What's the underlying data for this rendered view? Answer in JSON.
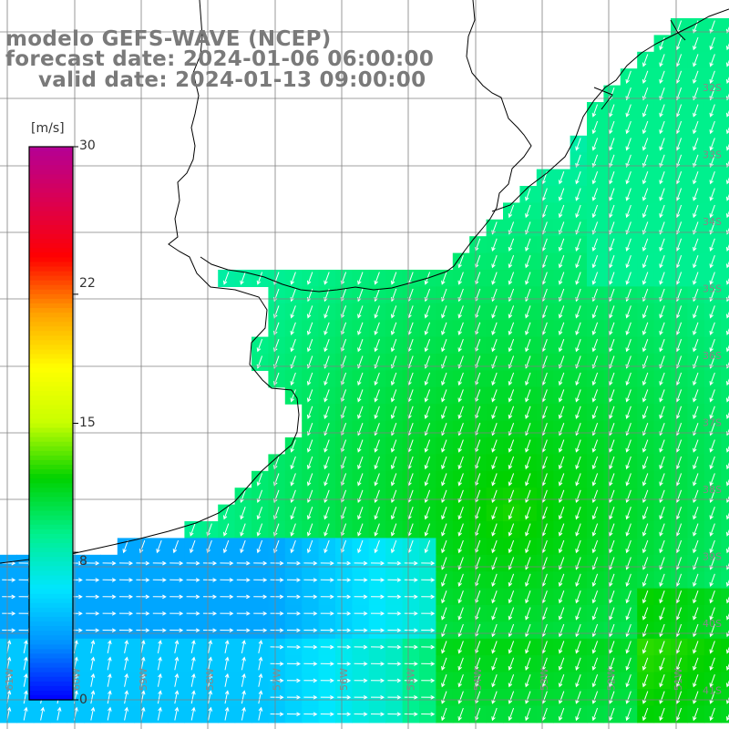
{
  "title": {
    "model": "modelo GEFS-WAVE (NCEP)",
    "forecast_date": "forecast date: 2024-01-06 06:00:00",
    "valid_date": "valid date: 2024-01-13 09:00:00"
  },
  "colorbar": {
    "unit": "[m/s]",
    "ticks": [
      {
        "value": 30,
        "label": "30"
      },
      {
        "value": 22,
        "label": "22"
      },
      {
        "value": 15,
        "label": "15"
      },
      {
        "value": 8,
        "label": "8"
      },
      {
        "value": 0,
        "label": "0"
      }
    ],
    "range": [
      0,
      30
    ],
    "colors": [
      "#0000ff",
      "#0090ff",
      "#00e6ff",
      "#00f08c",
      "#00d200",
      "#c8ff00",
      "#ffff00",
      "#ffa000",
      "#ff0000",
      "#dc0050",
      "#b40096"
    ]
  },
  "map": {
    "latitude_labels": [
      "32S",
      "33S",
      "34S",
      "35S",
      "36S",
      "37S",
      "38S",
      "39S",
      "40S",
      "41S"
    ],
    "longitude_labels": [
      "61W",
      "60W",
      "59W",
      "58W",
      "57W",
      "56W",
      "55W",
      "54W",
      "53W",
      "52W",
      "51W"
    ],
    "colors": {
      "land": "#ffffff",
      "grid": "#808080",
      "coast": "#000000",
      "arrows": "#ffffff"
    },
    "field": "wind speed"
  }
}
